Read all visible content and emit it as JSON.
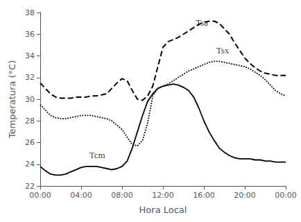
{
  "chart_data": {
    "type": "line",
    "xlabel": "Hora Local",
    "ylabel": "Temperatura (°C)",
    "xlim": [
      0,
      24
    ],
    "xticks": [
      {
        "value": 0,
        "label": "00:00"
      },
      {
        "value": 4,
        "label": "04:00"
      },
      {
        "value": 8,
        "label": "08:00"
      },
      {
        "value": 12,
        "label": "12:00"
      },
      {
        "value": 16,
        "label": "16:00"
      },
      {
        "value": 20,
        "label": "20:00"
      },
      {
        "value": 24,
        "label": "00:00"
      }
    ],
    "ylim": [
      22,
      38
    ],
    "yticks": [
      22,
      24,
      26,
      28,
      30,
      32,
      34,
      36,
      38
    ],
    "grid": false,
    "x": [
      0,
      0.5,
      1,
      1.5,
      2,
      2.5,
      3,
      3.5,
      4,
      4.5,
      5,
      5.5,
      6,
      6.5,
      7,
      7.5,
      8,
      8.5,
      9,
      9.5,
      10,
      10.5,
      11,
      11.5,
      12,
      12.5,
      13,
      13.5,
      14,
      14.5,
      15,
      15.5,
      16,
      16.5,
      17,
      17.5,
      18,
      18.5,
      19,
      19.5,
      20,
      20.5,
      21,
      21.5,
      22,
      22.5,
      23,
      23.5,
      24
    ],
    "series": [
      {
        "color": "#000000",
        "line_style": "solid",
        "values": [
          23.8,
          23.4,
          23.1,
          23.0,
          23.0,
          23.1,
          23.3,
          23.5,
          23.7,
          23.8,
          23.8,
          23.8,
          23.7,
          23.6,
          23.5,
          23.6,
          23.8,
          24.3,
          25.5,
          27.0,
          28.5,
          29.8,
          30.5,
          31.0,
          31.2,
          31.3,
          31.4,
          31.3,
          31.1,
          30.8,
          30.2,
          29.2,
          28.0,
          27.0,
          26.2,
          25.5,
          25.1,
          24.8,
          24.6,
          24.5,
          24.5,
          24.5,
          24.4,
          24.4,
          24.3,
          24.3,
          24.2,
          24.2,
          24.2
        ]
      },
      {
        "color": "#000000",
        "line_style": "dashed",
        "values": [
          31.5,
          31.0,
          30.5,
          30.2,
          30.1,
          30.1,
          30.1,
          30.2,
          30.2,
          30.2,
          30.3,
          30.3,
          30.4,
          30.5,
          31.0,
          31.5,
          31.9,
          31.7,
          30.8,
          30.0,
          29.9,
          30.3,
          31.2,
          33.0,
          34.8,
          35.3,
          35.5,
          35.7,
          36.0,
          36.3,
          36.6,
          36.9,
          37.1,
          37.2,
          37.2,
          37.0,
          36.5,
          36.0,
          35.2,
          34.5,
          33.8,
          33.3,
          32.9,
          32.6,
          32.4,
          32.3,
          32.2,
          32.2,
          32.2
        ]
      },
      {
        "color": "#000000",
        "line_style": "dotted",
        "values": [
          29.5,
          29.0,
          28.5,
          28.3,
          28.2,
          28.2,
          28.3,
          28.4,
          28.5,
          28.5,
          28.5,
          28.4,
          28.3,
          28.2,
          28.0,
          27.6,
          27.2,
          26.5,
          25.8,
          25.7,
          26.2,
          27.8,
          30.3,
          31.0,
          31.2,
          31.4,
          31.7,
          32.0,
          32.3,
          32.6,
          32.8,
          33.0,
          33.2,
          33.4,
          33.5,
          33.5,
          33.4,
          33.3,
          33.2,
          33.1,
          33.0,
          32.8,
          32.5,
          32.2,
          31.8,
          31.3,
          30.8,
          30.5,
          30.3
        ]
      }
    ],
    "annotations": [
      {
        "text": "Tcm",
        "x": 4.8,
        "y": 24.3,
        "color": "#000000"
      },
      {
        "text": "Tsa",
        "x": 15.2,
        "y": 36.5,
        "color": "#000000"
      },
      {
        "text": "Tsx",
        "x": 17.2,
        "y": 34.0,
        "color": "#000000"
      }
    ]
  }
}
